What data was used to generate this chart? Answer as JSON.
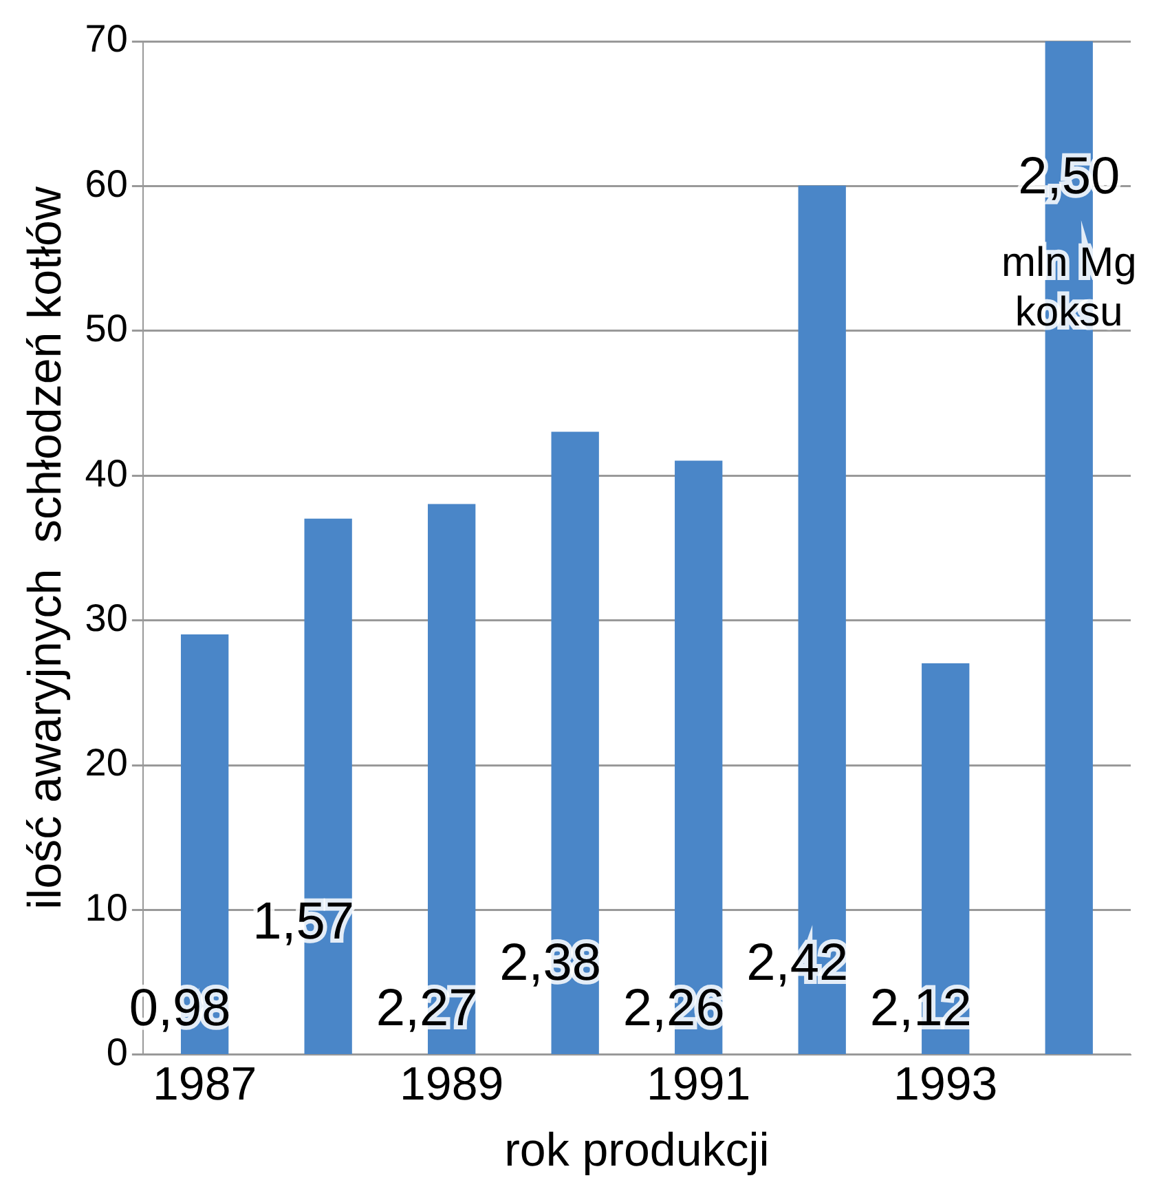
{
  "chart_data": {
    "type": "bar",
    "xlabel": "rok produkcji",
    "ylabel": "ilość awaryjnych  schłodzeń kotłów",
    "x": [
      1987,
      1988,
      1989,
      1990,
      1991,
      1992,
      1993,
      1994
    ],
    "values": [
      29,
      37,
      38,
      43,
      41,
      60,
      27,
      70
    ],
    "color": "#4a86c8",
    "xlim": [
      1986.5,
      1994.5
    ],
    "xticks": [
      1987,
      1989,
      1991,
      1993
    ],
    "ylim": [
      0,
      70
    ],
    "yticks": [
      0,
      10,
      20,
      30,
      40,
      50,
      60,
      70
    ],
    "grid": "y",
    "annotations": [
      "0,98",
      "1,57",
      "2,27",
      "2,38",
      "2,26",
      "2,42",
      "2,12",
      "2,50",
      "mln Mg\nkoksu"
    ]
  }
}
